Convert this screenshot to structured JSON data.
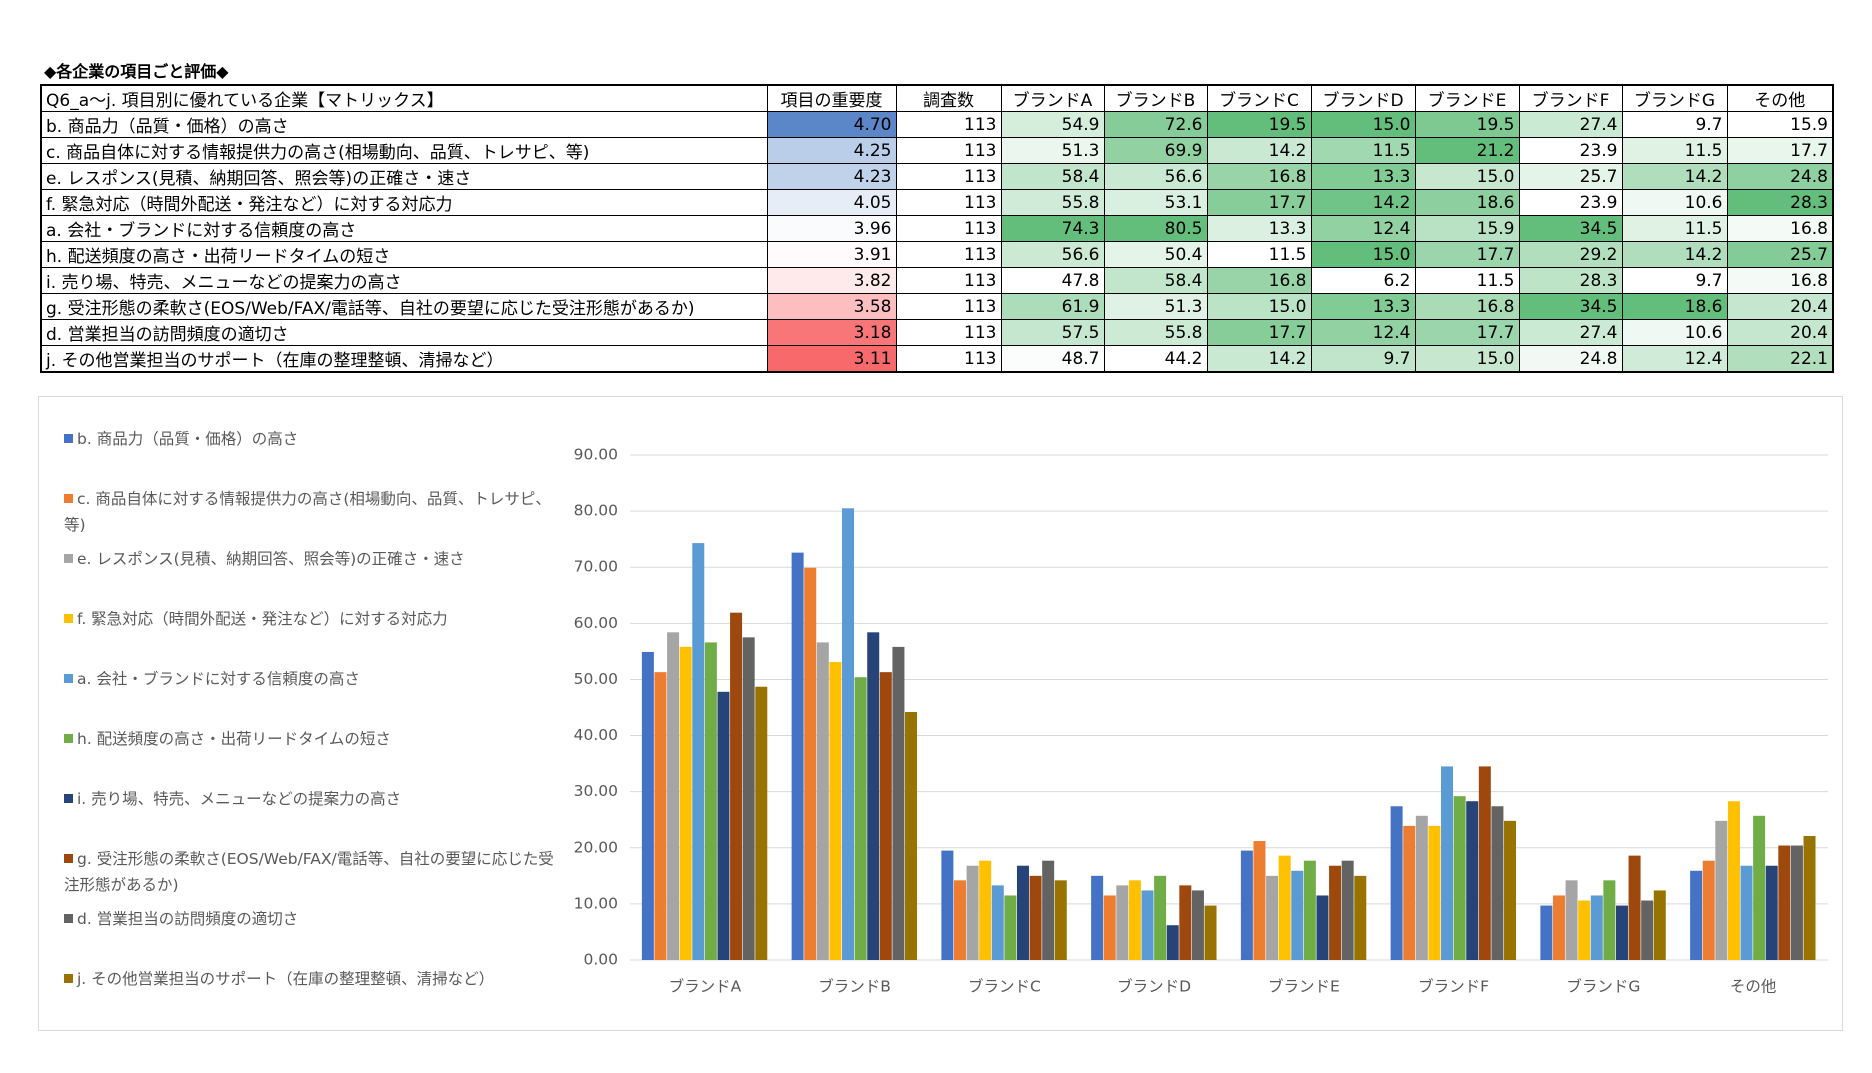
{
  "title": "◆各企業の項目ごと評価◆",
  "table": {
    "columns": [
      "Q6_a～j. 項目別に優れている企業【マトリックス】",
      "項目の重要度",
      "調査数",
      "ブランドA",
      "ブランドB",
      "ブランドC",
      "ブランドD",
      "ブランドE",
      "ブランドF",
      "ブランドG",
      "その他"
    ],
    "rows": [
      [
        "b. 商品力（品質・価格）の高さ",
        "4.70",
        "113",
        "54.9",
        "72.6",
        "19.5",
        "15.0",
        "19.5",
        "27.4",
        "9.7",
        "15.9"
      ],
      [
        "c. 商品自体に対する情報提供力の高さ(相場動向、品質、トレサピ、等)",
        "4.25",
        "113",
        "51.3",
        "69.9",
        "14.2",
        "11.5",
        "21.2",
        "23.9",
        "11.5",
        "17.7"
      ],
      [
        "e. レスポンス(見積、納期回答、照会等)の正確さ・速さ",
        "4.23",
        "113",
        "58.4",
        "56.6",
        "16.8",
        "13.3",
        "15.0",
        "25.7",
        "14.2",
        "24.8"
      ],
      [
        "f. 緊急対応（時間外配送・発注など）に対する対応力",
        "4.05",
        "113",
        "55.8",
        "53.1",
        "17.7",
        "14.2",
        "18.6",
        "23.9",
        "10.6",
        "28.3"
      ],
      [
        "a. 会社・ブランドに対する信頼度の高さ",
        "3.96",
        "113",
        "74.3",
        "80.5",
        "13.3",
        "12.4",
        "15.9",
        "34.5",
        "11.5",
        "16.8"
      ],
      [
        "h. 配送頻度の高さ・出荷リードタイムの短さ",
        "3.91",
        "113",
        "56.6",
        "50.4",
        "11.5",
        "15.0",
        "17.7",
        "29.2",
        "14.2",
        "25.7"
      ],
      [
        "i. 売り場、特売、メニューなどの提案力の高さ",
        "3.82",
        "113",
        "47.8",
        "58.4",
        "16.8",
        "6.2",
        "11.5",
        "28.3",
        "9.7",
        "16.8"
      ],
      [
        "g. 受注形態の柔軟さ(EOS/Web/FAX/電話等、自社の要望に応じた受注形態があるか)",
        "3.58",
        "113",
        "61.9",
        "51.3",
        "15.0",
        "13.3",
        "16.8",
        "34.5",
        "18.6",
        "20.4"
      ],
      [
        "d. 営業担当の訪問頻度の適切さ",
        "3.18",
        "113",
        "57.5",
        "55.8",
        "17.7",
        "12.4",
        "17.7",
        "27.4",
        "10.6",
        "20.4"
      ],
      [
        "j. その他営業担当のサポート（在庫の整理整頓、清掃など）",
        "3.11",
        "113",
        "48.7",
        "44.2",
        "14.2",
        "9.7",
        "15.0",
        "24.8",
        "12.4",
        "22.1"
      ]
    ]
  },
  "chart_data": {
    "type": "bar",
    "legend": "left",
    "grid": true,
    "categories": [
      "ブランドA",
      "ブランドB",
      "ブランドC",
      "ブランドD",
      "ブランドE",
      "ブランドF",
      "ブランドG",
      "その他"
    ],
    "ylim": [
      0,
      90
    ],
    "yticks": [
      {
        "value": 0,
        "label": "0.00"
      },
      {
        "value": 10,
        "label": "10.00"
      },
      {
        "value": 20,
        "label": "20.00"
      },
      {
        "value": 30,
        "label": "30.00"
      },
      {
        "value": 40,
        "label": "40.00"
      },
      {
        "value": 50,
        "label": "50.00"
      },
      {
        "value": 60,
        "label": "60.00"
      },
      {
        "value": 70,
        "label": "70.00"
      },
      {
        "value": 80,
        "label": "80.00"
      },
      {
        "value": 90,
        "label": "90.00"
      }
    ],
    "series": [
      {
        "name": "b. 商品力（品質・価格）の高さ",
        "color": "#4472c4",
        "values": [
          54.9,
          72.6,
          19.5,
          15.0,
          19.5,
          27.4,
          9.7,
          15.9
        ]
      },
      {
        "name": "c. 商品自体に対する情報提供力の高さ(相場動向、品質、トレサピ、等)",
        "color": "#ed7d31",
        "values": [
          51.3,
          69.9,
          14.2,
          11.5,
          21.2,
          23.9,
          11.5,
          17.7
        ]
      },
      {
        "name": "e. レスポンス(見積、納期回答、照会等)の正確さ・速さ",
        "color": "#a5a5a5",
        "values": [
          58.4,
          56.6,
          16.8,
          13.3,
          15.0,
          25.7,
          14.2,
          24.8
        ]
      },
      {
        "name": "f. 緊急対応（時間外配送・発注など）に対する対応力",
        "color": "#ffc000",
        "values": [
          55.8,
          53.1,
          17.7,
          14.2,
          18.6,
          23.9,
          10.6,
          28.3
        ]
      },
      {
        "name": "a. 会社・ブランドに対する信頼度の高さ",
        "color": "#5b9bd5",
        "values": [
          74.3,
          80.5,
          13.3,
          12.4,
          15.9,
          34.5,
          11.5,
          16.8
        ]
      },
      {
        "name": "h. 配送頻度の高さ・出荷リードタイムの短さ",
        "color": "#70ad47",
        "values": [
          56.6,
          50.4,
          11.5,
          15.0,
          17.7,
          29.2,
          14.2,
          25.7
        ]
      },
      {
        "name": "i. 売り場、特売、メニューなどの提案力の高さ",
        "color": "#264478",
        "values": [
          47.8,
          58.4,
          16.8,
          6.2,
          11.5,
          28.3,
          9.7,
          16.8
        ]
      },
      {
        "name": "g. 受注形態の柔軟さ(EOS/Web/FAX/電話等、自社の要望に応じた受注形態があるか)",
        "color": "#9e480e",
        "values": [
          61.9,
          51.3,
          15.0,
          13.3,
          16.8,
          34.5,
          18.6,
          20.4
        ]
      },
      {
        "name": "d. 営業担当の訪問頻度の適切さ",
        "color": "#636363",
        "values": [
          57.5,
          55.8,
          17.7,
          12.4,
          17.7,
          27.4,
          10.6,
          20.4
        ]
      },
      {
        "name": "j. その他営業担当のサポート（在庫の整理整頓、清掃など）",
        "color": "#997300",
        "values": [
          48.7,
          44.2,
          14.2,
          9.7,
          15.0,
          24.8,
          12.4,
          22.1
        ]
      }
    ]
  }
}
